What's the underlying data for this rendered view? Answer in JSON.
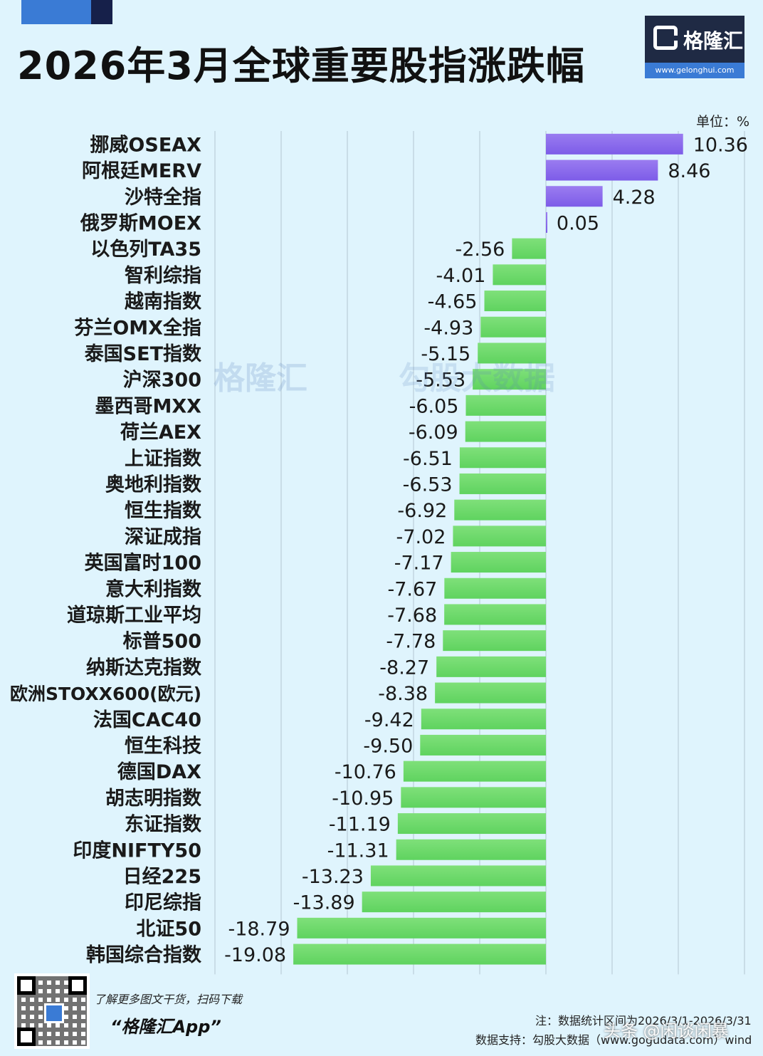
{
  "header": {
    "title": "2026年3月全球重要股指涨跌幅",
    "logo_name": "格隆汇",
    "logo_url": "www.gelonghui.com",
    "unit": "单位：%"
  },
  "watermark": {
    "left": "格隆汇",
    "right": "勾股大数据"
  },
  "footer": {
    "qr_text": "了解更多图文干货，扫码下载",
    "app_name": "“格隆汇App”",
    "note": "注：数据统计区间为2026/3/1-2026/3/31",
    "source": "数据支持：勾股大数据（www.gogudata.com）wind",
    "credit": "头条 @闲谈闲暴"
  },
  "colors": {
    "positive_bar": "#7d5ce8",
    "negative_bar": "#5fd35f",
    "background": "#dff4fd",
    "grid": "#c2d5e0"
  },
  "chart_data": {
    "type": "bar",
    "orientation": "horizontal",
    "title": "2026年3月全球重要股指涨跌幅",
    "unit": "%",
    "grid": true,
    "categories": [
      "挪威OSEAX",
      "阿根廷MERV",
      "沙特全指",
      "俄罗斯MOEX",
      "以色列TA35",
      "智利综指",
      "越南指数",
      "芬兰OMX全指",
      "泰国SET指数",
      "沪深300",
      "墨西哥MXX",
      "荷兰AEX",
      "上证指数",
      "奥地利指数",
      "恒生指数",
      "深证成指",
      "英国富时100",
      "意大利指数",
      "道琼斯工业平均",
      "标普500",
      "纳斯达克指数",
      "欧洲STOXX600(欧元)",
      "法国CAC40",
      "恒生科技",
      "德国DAX",
      "胡志明指数",
      "东证指数",
      "印度NIFTY50",
      "日经225",
      "印尼综指",
      "北证50",
      "韩国综合指数"
    ],
    "values": [
      10.36,
      8.46,
      4.28,
      0.05,
      -2.56,
      -4.01,
      -4.65,
      -4.93,
      -5.15,
      -5.53,
      -6.05,
      -6.09,
      -6.51,
      -6.53,
      -6.92,
      -7.02,
      -7.17,
      -7.67,
      -7.68,
      -7.78,
      -8.27,
      -8.38,
      -9.42,
      -9.5,
      -10.76,
      -10.95,
      -11.19,
      -11.31,
      -13.23,
      -13.89,
      -18.79,
      -19.08
    ],
    "labels": [
      "10.36",
      "8.46",
      "4.28",
      "0.05",
      "-2.56",
      "-4.01",
      "-4.65",
      "-4.93",
      "-5.15",
      "-5.53",
      "-6.05",
      "-6.09",
      "-6.51",
      "-6.53",
      "-6.92",
      "-7.02",
      "-7.17",
      "-7.67",
      "-7.68",
      "-7.78",
      "-8.27",
      "-8.38",
      "-9.42",
      "-9.50",
      "-10.76",
      "-10.95",
      "-11.19",
      "-11.31",
      "-13.23",
      "-13.89",
      "-18.79",
      "-19.08"
    ],
    "xlim": [
      -25,
      15
    ]
  }
}
